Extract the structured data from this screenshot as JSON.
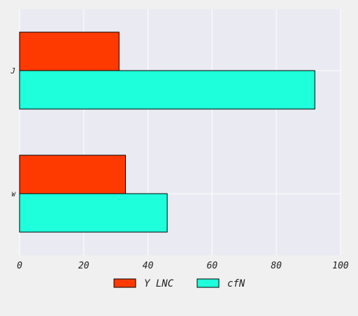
{
  "chart_data": {
    "type": "bar",
    "orientation": "horizontal",
    "categories": [
      "J",
      "W"
    ],
    "series": [
      {
        "name": "Y LNC",
        "values": [
          31,
          33
        ],
        "color": "#ff3a00"
      },
      {
        "name": "cfN",
        "values": [
          92,
          46
        ],
        "color": "#1effdc"
      }
    ],
    "xlim": [
      0,
      100
    ],
    "xticks": [
      0,
      20,
      40,
      60,
      80,
      100
    ],
    "xtick_labels": [
      "0",
      "20",
      "40",
      "60",
      "80",
      "100"
    ],
    "grid": true,
    "legend_position": "bottom-center",
    "colors": {
      "plot_background": "#eaeaf2",
      "page_background": "#f0f0f0",
      "grid": "#ffffff",
      "bar_edge": "#000000",
      "text": "#222222"
    }
  }
}
